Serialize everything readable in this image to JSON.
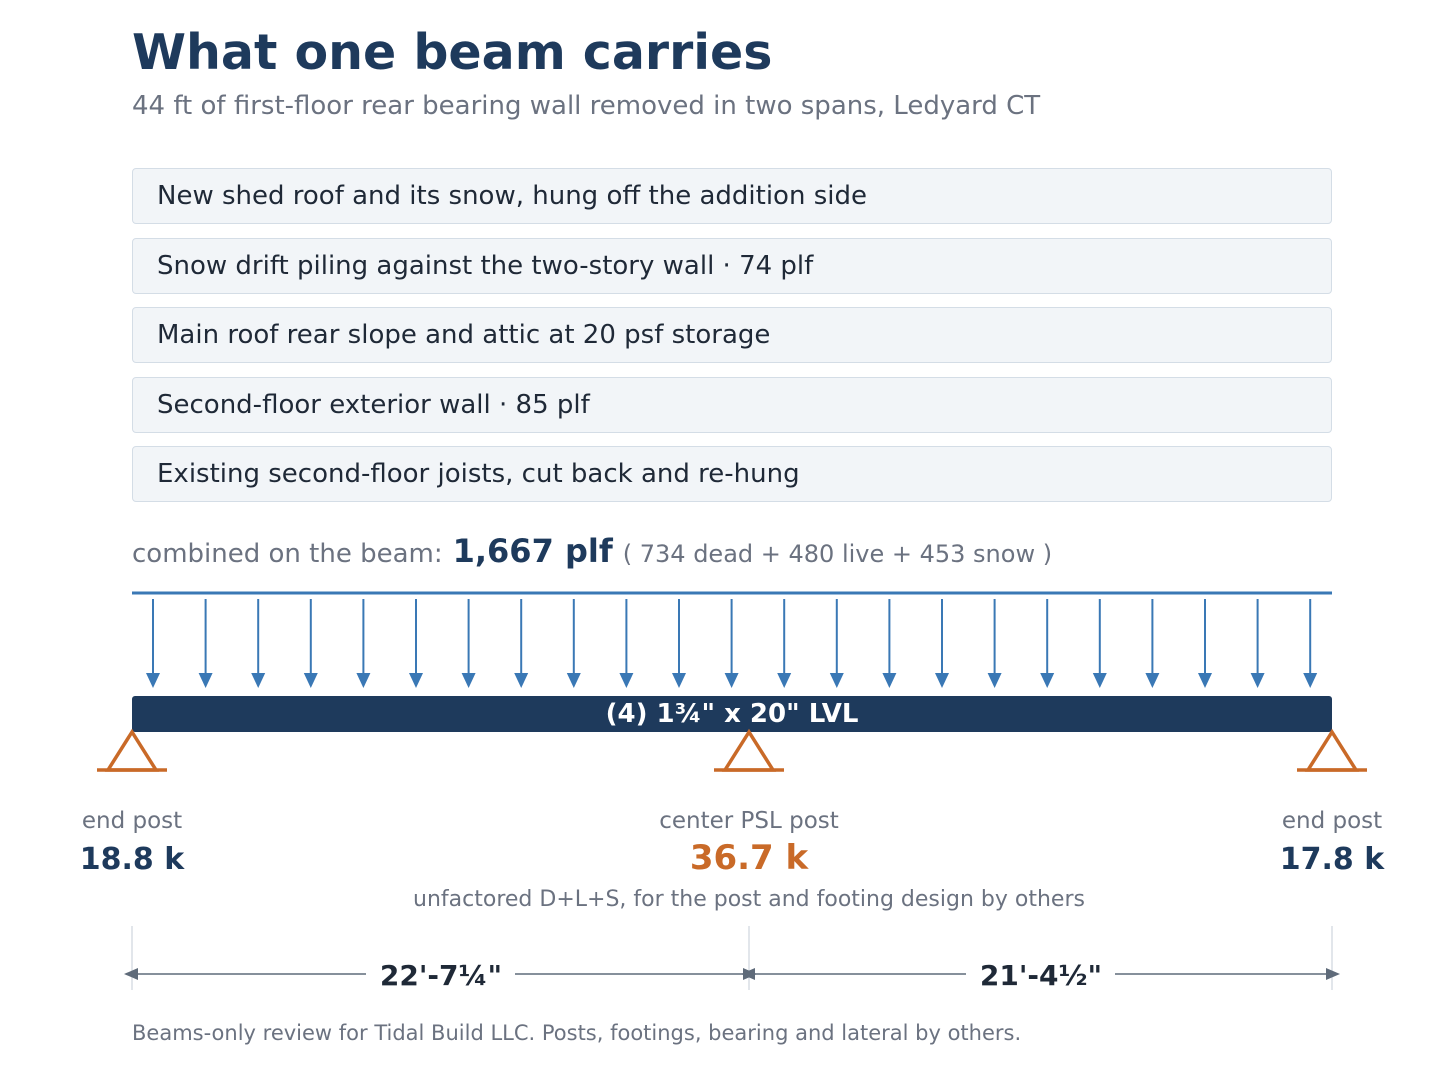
{
  "header": {
    "title": "What one beam carries",
    "subtitle": "44 ft of first-floor rear bearing wall removed in two spans, Ledyard CT"
  },
  "load_sources": [
    "New shed roof and its snow, hung off the addition side",
    "Snow drift piling against the two-story wall · 74 plf",
    "Main roof rear slope and attic at 20 psf storage",
    "Second-floor exterior wall · 85 plf",
    "Existing second-floor joists, cut back and re-hung"
  ],
  "combined": {
    "lead": "combined on the beam:",
    "value": "1,667 plf",
    "breakdown": "( 734 dead + 480 live + 453 snow )"
  },
  "beam": {
    "label": "(4) 1¾\" x 20\" LVL"
  },
  "supports": [
    {
      "name": "end post",
      "reaction": "18.8 k",
      "reaction_kips": 18.8,
      "highlight": false
    },
    {
      "name": "center PSL post",
      "reaction": "36.7 k",
      "reaction_kips": 36.7,
      "highlight": true
    },
    {
      "name": "end post",
      "reaction": "17.8 k",
      "reaction_kips": 17.8,
      "highlight": false
    }
  ],
  "reactions_note": "unfactored D+L+S, for the post and footing design by others",
  "spans": [
    {
      "label": "22'-7¼\"",
      "length_in": 271.25
    },
    {
      "label": "21'-4½\"",
      "length_in": 256.5
    }
  ],
  "footnote": "Beams-only review for Tidal Build LLC. Posts, footings, bearing and lateral by others.",
  "colors": {
    "navy": "#1e3a5c",
    "load_arrow": "#3a78b5",
    "support": "#c96a28",
    "muted": "#6b7280",
    "dimension": "#5f6b7a",
    "panel_bg": "#f2f5f8",
    "panel_border": "#d4dde6"
  }
}
